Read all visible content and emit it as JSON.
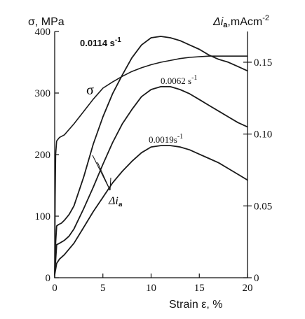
{
  "chart_data": {
    "type": "line",
    "x_axis": {
      "label": "Strain ε, %",
      "range": [
        0,
        20
      ],
      "ticks": [
        0,
        5,
        10,
        15,
        20
      ]
    },
    "y_axis_left": {
      "label": "σ, MPa",
      "range": [
        0,
        400
      ],
      "ticks": [
        0,
        100,
        200,
        300,
        400
      ]
    },
    "y_axis_right": {
      "label_main": "Δi",
      "label_sub": "a",
      "label_units": ",mAcm",
      "label_exp": "-2",
      "range": [
        0,
        0.1714
      ],
      "ticks": [
        0,
        0.05,
        0.1,
        0.15
      ],
      "tick_labels": [
        "0",
        "0.05",
        "0.10",
        "0.15"
      ]
    },
    "grid": false,
    "series": [
      {
        "name": "σ",
        "axis": "left",
        "x": [
          0.0,
          0.05,
          0.1,
          0.2,
          0.3,
          0.5,
          1.0,
          2.0,
          3.0,
          4.0,
          5.0,
          6.0,
          7.0,
          8.0,
          9.0,
          10.0,
          11.0,
          12.0,
          13.0,
          14.0,
          15.0,
          16.0,
          17.0,
          18.0,
          19.0,
          20.0
        ],
        "y": [
          0,
          130,
          200,
          222,
          224,
          228,
          232,
          250,
          270,
          290,
          308,
          318,
          327,
          335,
          341,
          346,
          350,
          353,
          356,
          358,
          359,
          360,
          360,
          360,
          360,
          360
        ]
      },
      {
        "name": "0.0114 s⁻¹",
        "axis": "right",
        "x": [
          0.0,
          0.1,
          0.2,
          0.4,
          0.7,
          1.0,
          1.5,
          2.0,
          3.0,
          4.0,
          5.0,
          6.0,
          7.0,
          8.0,
          9.0,
          10.0,
          11.0,
          12.0,
          13.0,
          14.0,
          15.0,
          16.0,
          17.0,
          18.0,
          19.0,
          20.0
        ],
        "y": [
          0.003,
          0.025,
          0.036,
          0.037,
          0.038,
          0.04,
          0.044,
          0.05,
          0.07,
          0.093,
          0.112,
          0.128,
          0.141,
          0.153,
          0.162,
          0.167,
          0.168,
          0.167,
          0.165,
          0.162,
          0.159,
          0.155,
          0.152,
          0.15,
          0.147,
          0.144
        ]
      },
      {
        "name": "0.0062 s⁻¹",
        "axis": "right",
        "x": [
          0.0,
          0.2,
          0.5,
          1.0,
          1.5,
          2.0,
          3.0,
          4.0,
          5.0,
          6.0,
          7.0,
          8.0,
          9.0,
          10.0,
          11.0,
          12.0,
          13.0,
          14.0,
          15.0,
          16.0,
          17.0,
          18.0,
          19.0,
          20.0
        ],
        "y": [
          0.002,
          0.023,
          0.024,
          0.026,
          0.029,
          0.034,
          0.048,
          0.063,
          0.079,
          0.094,
          0.107,
          0.117,
          0.126,
          0.131,
          0.133,
          0.133,
          0.131,
          0.128,
          0.124,
          0.12,
          0.116,
          0.112,
          0.108,
          0.105
        ]
      },
      {
        "name": "0.0019 s⁻¹",
        "axis": "right",
        "x": [
          0.0,
          0.2,
          0.5,
          1.0,
          2.0,
          3.0,
          4.0,
          5.0,
          6.0,
          7.0,
          8.0,
          9.0,
          10.0,
          11.0,
          12.0,
          13.0,
          14.0,
          15.0,
          16.0,
          17.0,
          18.0,
          19.0,
          20.0
        ],
        "y": [
          0.002,
          0.01,
          0.013,
          0.016,
          0.024,
          0.035,
          0.046,
          0.056,
          0.066,
          0.074,
          0.081,
          0.087,
          0.091,
          0.092,
          0.092,
          0.091,
          0.089,
          0.086,
          0.083,
          0.08,
          0.076,
          0.072,
          0.068
        ]
      }
    ],
    "annotations": [
      {
        "text": "σ",
        "kind": "label"
      },
      {
        "text_main": "Δi",
        "text_sub": "a",
        "kind": "pointer"
      }
    ],
    "rate_labels": [
      {
        "value": "0.0114",
        "unit": "s",
        "exp": "-1"
      },
      {
        "value": "0.0062",
        "unit": "s",
        "exp": "-1"
      },
      {
        "value": "0.0019",
        "unit": "s",
        "exp": "-1"
      }
    ]
  }
}
